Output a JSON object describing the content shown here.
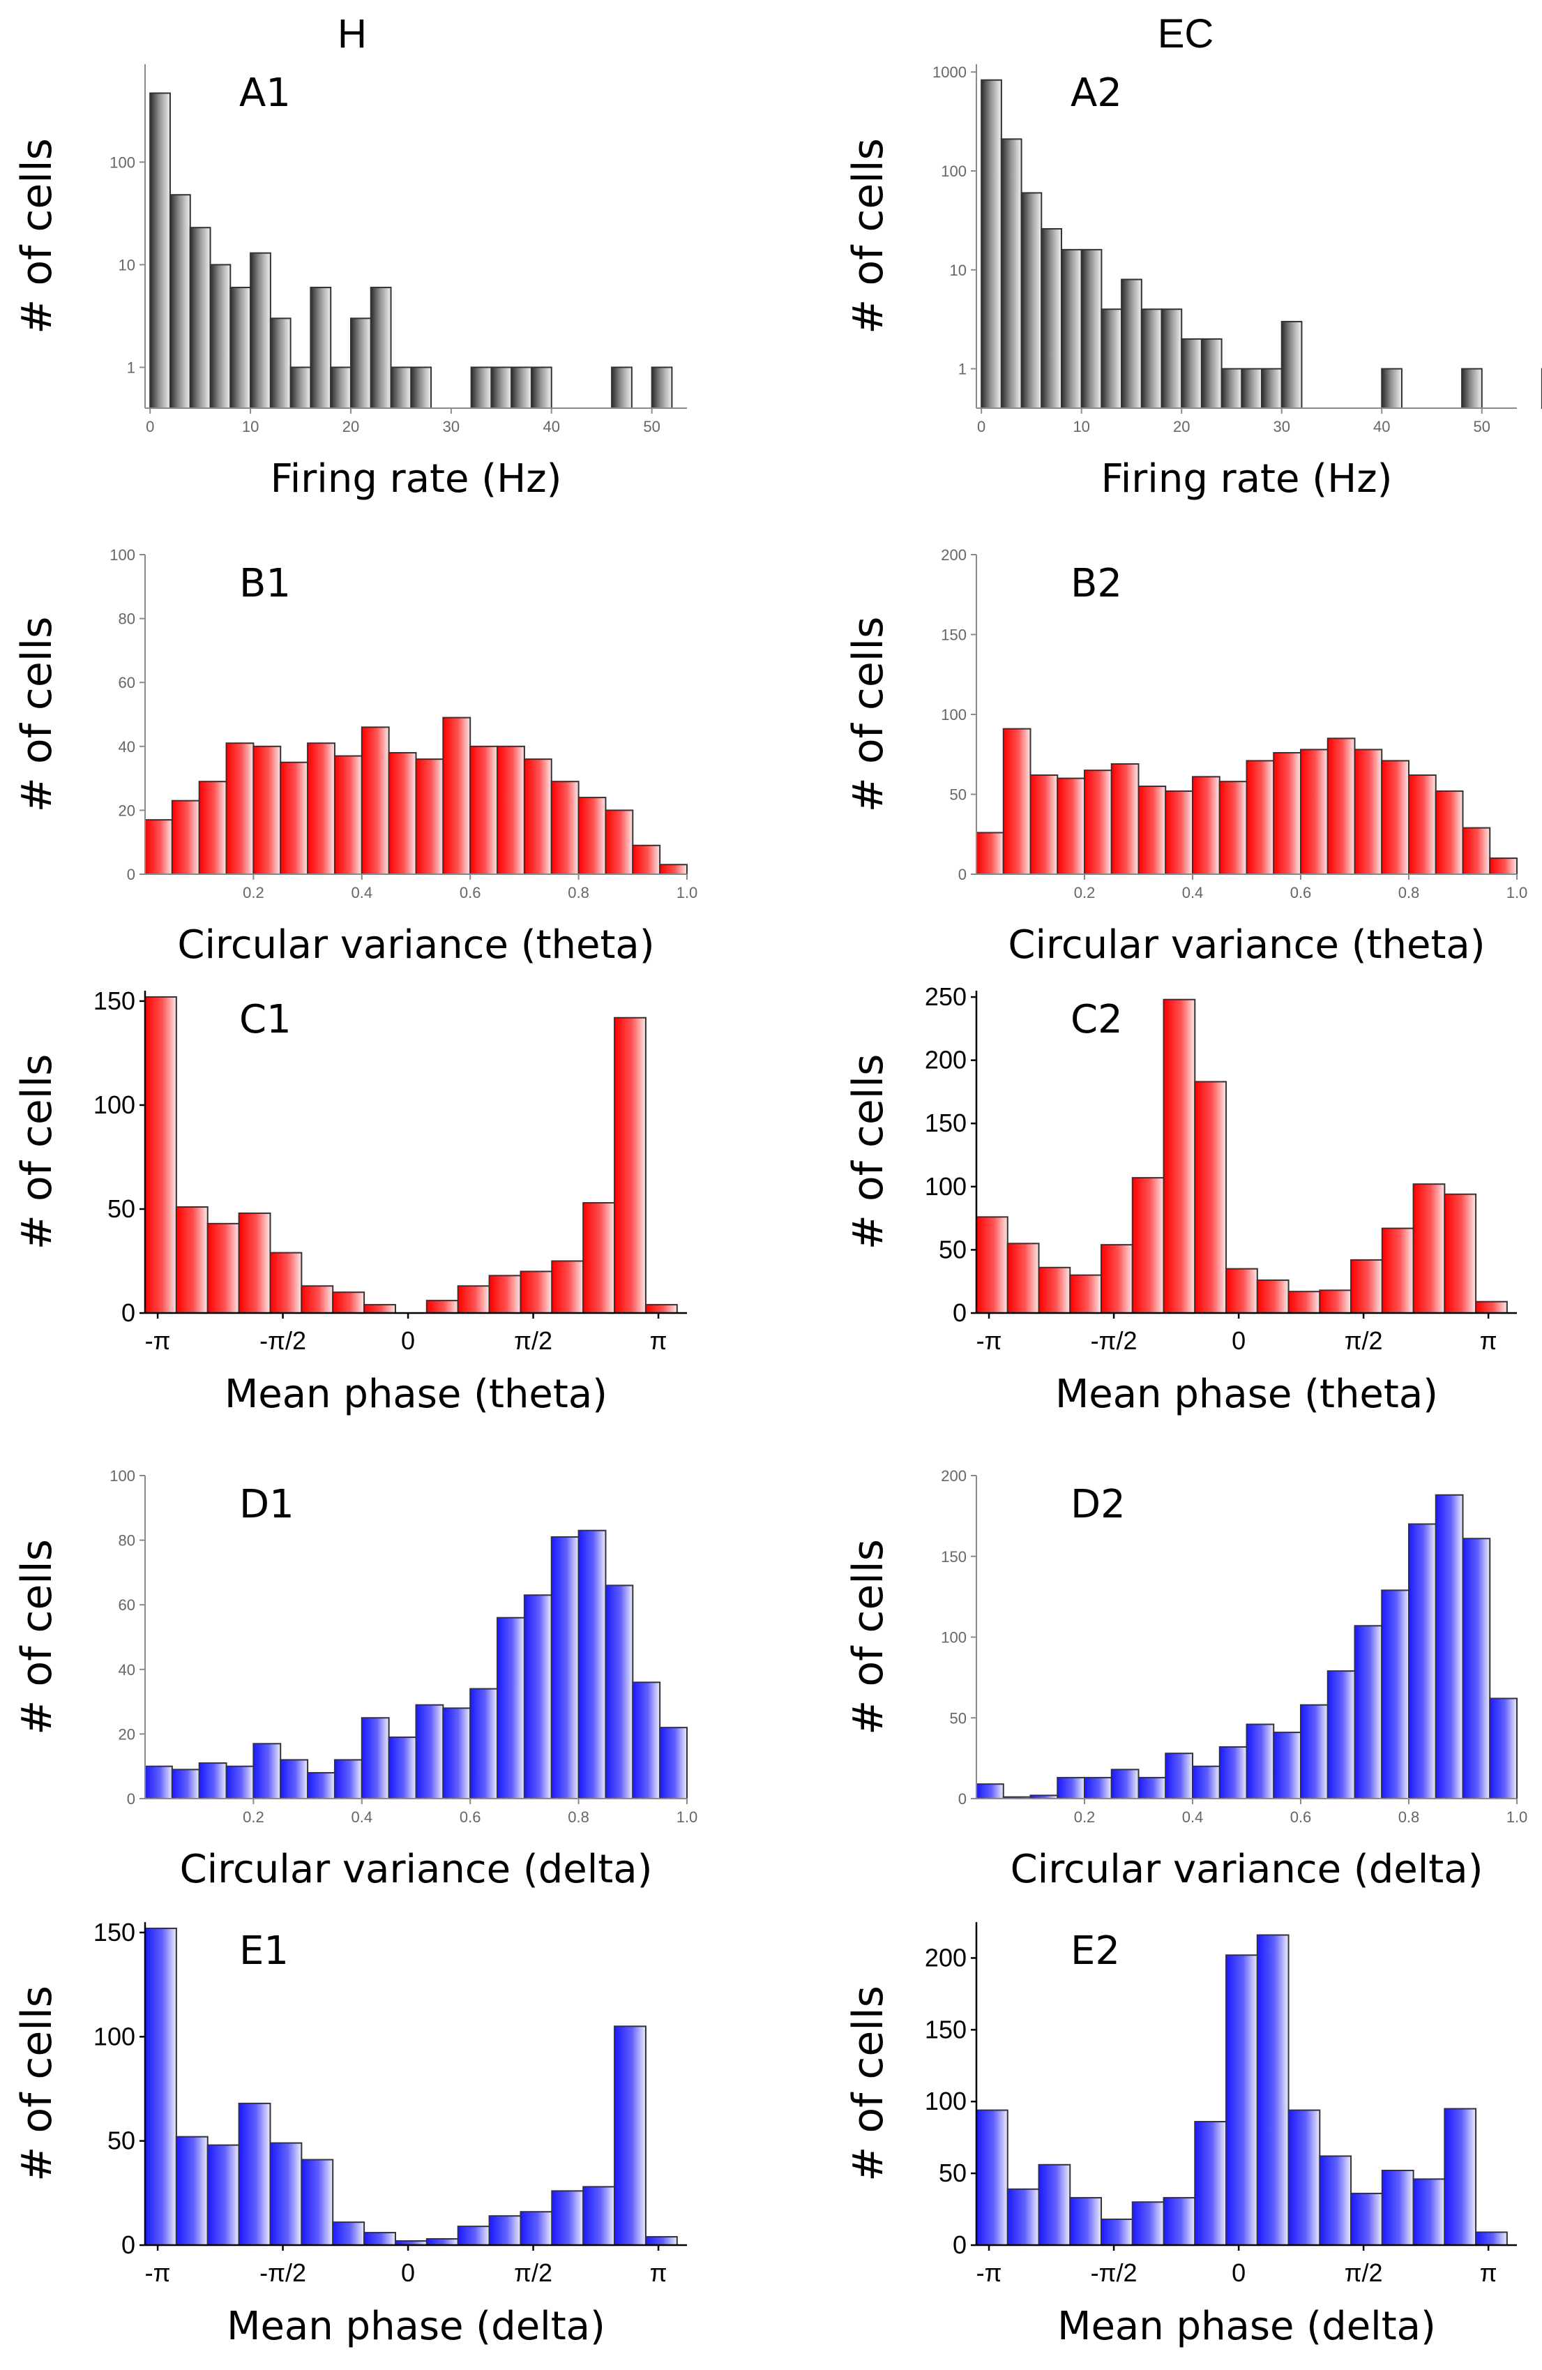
{
  "column_headers": [
    "H",
    "EC"
  ],
  "colors": {
    "gray": "#8a8a8a",
    "red": "#ff2020",
    "blue": "#2a2aff"
  },
  "chart_data": [
    {
      "id": "A1",
      "type": "bar",
      "panel_label": "A1",
      "column": "H",
      "xlabel": "Firing rate (Hz)",
      "ylabel": "# of cells",
      "scale": "log",
      "color": "gray",
      "xlim": [
        -0.5,
        53.5
      ],
      "ylim": [
        0.4,
        900
      ],
      "xticks": [
        0,
        10,
        20,
        30,
        40,
        50
      ],
      "yticks": [
        1,
        10,
        100
      ],
      "bin_width": 2,
      "bin_start": 0,
      "values": [
        470,
        48,
        23,
        10,
        6,
        13,
        3,
        1,
        6,
        1,
        3,
        6,
        1,
        1,
        0,
        0,
        1,
        1,
        1,
        1,
        0,
        0,
        0,
        1,
        0,
        1
      ]
    },
    {
      "id": "A2",
      "type": "bar",
      "panel_label": "A2",
      "column": "EC",
      "xlabel": "Firing rate (Hz)",
      "ylabel": "# of cells",
      "scale": "log",
      "color": "gray",
      "xlim": [
        -0.5,
        53.5
      ],
      "ylim": [
        0.4,
        1200
      ],
      "xticks": [
        0,
        10,
        20,
        30,
        40,
        50
      ],
      "yticks": [
        1,
        10,
        100,
        1000
      ],
      "bin_width": 2,
      "bin_start": 0,
      "values": [
        830,
        210,
        60,
        26,
        16,
        16,
        4,
        8,
        4,
        4,
        2,
        2,
        1,
        1,
        1,
        3,
        0,
        0,
        0,
        0,
        1,
        0,
        0,
        0,
        1,
        0,
        0,
        0,
        1
      ]
    },
    {
      "id": "B1",
      "type": "bar",
      "panel_label": "B1",
      "column": "H",
      "xlabel": "Circular variance (theta)",
      "ylabel": "# of cells",
      "scale": "linear",
      "color": "red",
      "xlim": [
        0,
        1.0
      ],
      "ylim": [
        0,
        100
      ],
      "xticks": [
        0.2,
        0.4,
        0.6,
        0.8,
        1.0
      ],
      "xtick_labels": [
        "0.2",
        "0.4",
        "0.6",
        "0.8",
        "1.0"
      ],
      "yticks": [
        0,
        20,
        40,
        60,
        80,
        100
      ],
      "bin_width": 0.05,
      "bin_start": 0,
      "values": [
        17,
        23,
        29,
        41,
        40,
        35,
        41,
        37,
        46,
        38,
        36,
        49,
        40,
        40,
        36,
        29,
        24,
        20,
        9,
        3
      ]
    },
    {
      "id": "B2",
      "type": "bar",
      "panel_label": "B2",
      "column": "EC",
      "xlabel": "Circular variance (theta)",
      "ylabel": "# of cells",
      "scale": "linear",
      "color": "red",
      "xlim": [
        0,
        1.0
      ],
      "ylim": [
        0,
        200
      ],
      "xticks": [
        0.2,
        0.4,
        0.6,
        0.8,
        1.0
      ],
      "xtick_labels": [
        "0.2",
        "0.4",
        "0.6",
        "0.8",
        "1.0"
      ],
      "yticks": [
        0,
        50,
        100,
        150,
        200
      ],
      "bin_width": 0.05,
      "bin_start": 0,
      "values": [
        26,
        91,
        62,
        60,
        65,
        69,
        55,
        52,
        61,
        58,
        71,
        76,
        78,
        85,
        78,
        71,
        62,
        52,
        29,
        10
      ]
    },
    {
      "id": "C1",
      "type": "bar",
      "panel_label": "C1",
      "column": "H",
      "xlabel": "Mean phase (theta)",
      "ylabel": "# of cells",
      "scale": "linear",
      "color": "red",
      "xlim": [
        -3.3,
        3.5
      ],
      "ylim": [
        0,
        155
      ],
      "xticks": [
        -3.1416,
        -1.5708,
        0,
        1.5708,
        3.1416
      ],
      "xtick_labels": [
        "-π",
        "-π/2",
        "0",
        "π/2",
        "π"
      ],
      "yticks": [
        0,
        50,
        100,
        150
      ],
      "bin_width": 0.3927,
      "bin_start": -3.3,
      "values": [
        152,
        51,
        43,
        48,
        29,
        13,
        10,
        4,
        0,
        6,
        13,
        18,
        20,
        25,
        53,
        142,
        4
      ]
    },
    {
      "id": "C2",
      "type": "bar",
      "panel_label": "C2",
      "column": "EC",
      "xlabel": "Mean phase (theta)",
      "ylabel": "# of cells",
      "scale": "linear",
      "color": "red",
      "xlim": [
        -3.3,
        3.5
      ],
      "ylim": [
        0,
        255
      ],
      "xticks": [
        -3.1416,
        -1.5708,
        0,
        1.5708,
        3.1416
      ],
      "xtick_labels": [
        "-π",
        "-π/2",
        "0",
        "π/2",
        "π"
      ],
      "yticks": [
        0,
        50,
        100,
        150,
        200,
        250
      ],
      "bin_width": 0.3927,
      "bin_start": -3.3,
      "values": [
        76,
        55,
        36,
        30,
        54,
        107,
        248,
        183,
        35,
        26,
        17,
        18,
        42,
        67,
        102,
        94,
        9
      ]
    },
    {
      "id": "D1",
      "type": "bar",
      "panel_label": "D1",
      "column": "H",
      "xlabel": "Circular variance (delta)",
      "ylabel": "# of cells",
      "scale": "linear",
      "color": "blue",
      "xlim": [
        0,
        1.0
      ],
      "ylim": [
        0,
        100
      ],
      "xticks": [
        0.2,
        0.4,
        0.6,
        0.8,
        1.0
      ],
      "xtick_labels": [
        "0.2",
        "0.4",
        "0.6",
        "0.8",
        "1.0"
      ],
      "yticks": [
        0,
        20,
        40,
        60,
        80,
        100
      ],
      "bin_width": 0.05,
      "bin_start": 0,
      "values": [
        10,
        9,
        11,
        10,
        17,
        12,
        8,
        12,
        25,
        19,
        29,
        28,
        34,
        56,
        63,
        81,
        83,
        66,
        36,
        22
      ]
    },
    {
      "id": "D2",
      "type": "bar",
      "panel_label": "D2",
      "column": "EC",
      "xlabel": "Circular variance (delta)",
      "ylabel": "# of cells",
      "scale": "linear",
      "color": "blue",
      "xlim": [
        0,
        1.0
      ],
      "ylim": [
        0,
        200
      ],
      "xticks": [
        0.2,
        0.4,
        0.6,
        0.8,
        1.0
      ],
      "xtick_labels": [
        "0.2",
        "0.4",
        "0.6",
        "0.8",
        "1.0"
      ],
      "yticks": [
        0,
        50,
        100,
        150,
        200
      ],
      "bin_width": 0.05,
      "bin_start": 0,
      "values": [
        9,
        1,
        2,
        13,
        13,
        18,
        13,
        28,
        20,
        32,
        46,
        41,
        58,
        79,
        107,
        129,
        170,
        188,
        161,
        62
      ]
    },
    {
      "id": "E1",
      "type": "bar",
      "panel_label": "E1",
      "column": "H",
      "xlabel": "Mean phase (delta)",
      "ylabel": "# of cells",
      "scale": "linear",
      "color": "blue",
      "xlim": [
        -3.3,
        3.5
      ],
      "ylim": [
        0,
        155
      ],
      "xticks": [
        -3.1416,
        -1.5708,
        0,
        1.5708,
        3.1416
      ],
      "xtick_labels": [
        "-π",
        "-π/2",
        "0",
        "π/2",
        "π"
      ],
      "yticks": [
        0,
        50,
        100,
        150
      ],
      "bin_width": 0.3927,
      "bin_start": -3.3,
      "values": [
        152,
        52,
        48,
        68,
        49,
        41,
        11,
        6,
        2,
        3,
        9,
        14,
        16,
        26,
        28,
        105,
        4
      ]
    },
    {
      "id": "E2",
      "type": "bar",
      "panel_label": "E2",
      "column": "EC",
      "xlabel": "Mean phase (delta)",
      "ylabel": "# of cells",
      "scale": "linear",
      "color": "blue",
      "xlim": [
        -3.3,
        3.5
      ],
      "ylim": [
        0,
        225
      ],
      "xticks": [
        -3.1416,
        -1.5708,
        0,
        1.5708,
        3.1416
      ],
      "xtick_labels": [
        "-π",
        "-π/2",
        "0",
        "π/2",
        "π"
      ],
      "yticks": [
        0,
        50,
        100,
        150,
        200
      ],
      "bin_width": 0.3927,
      "bin_start": -3.3,
      "values": [
        94,
        39,
        56,
        33,
        18,
        30,
        33,
        86,
        202,
        216,
        94,
        62,
        36,
        52,
        46,
        95,
        9
      ]
    }
  ]
}
